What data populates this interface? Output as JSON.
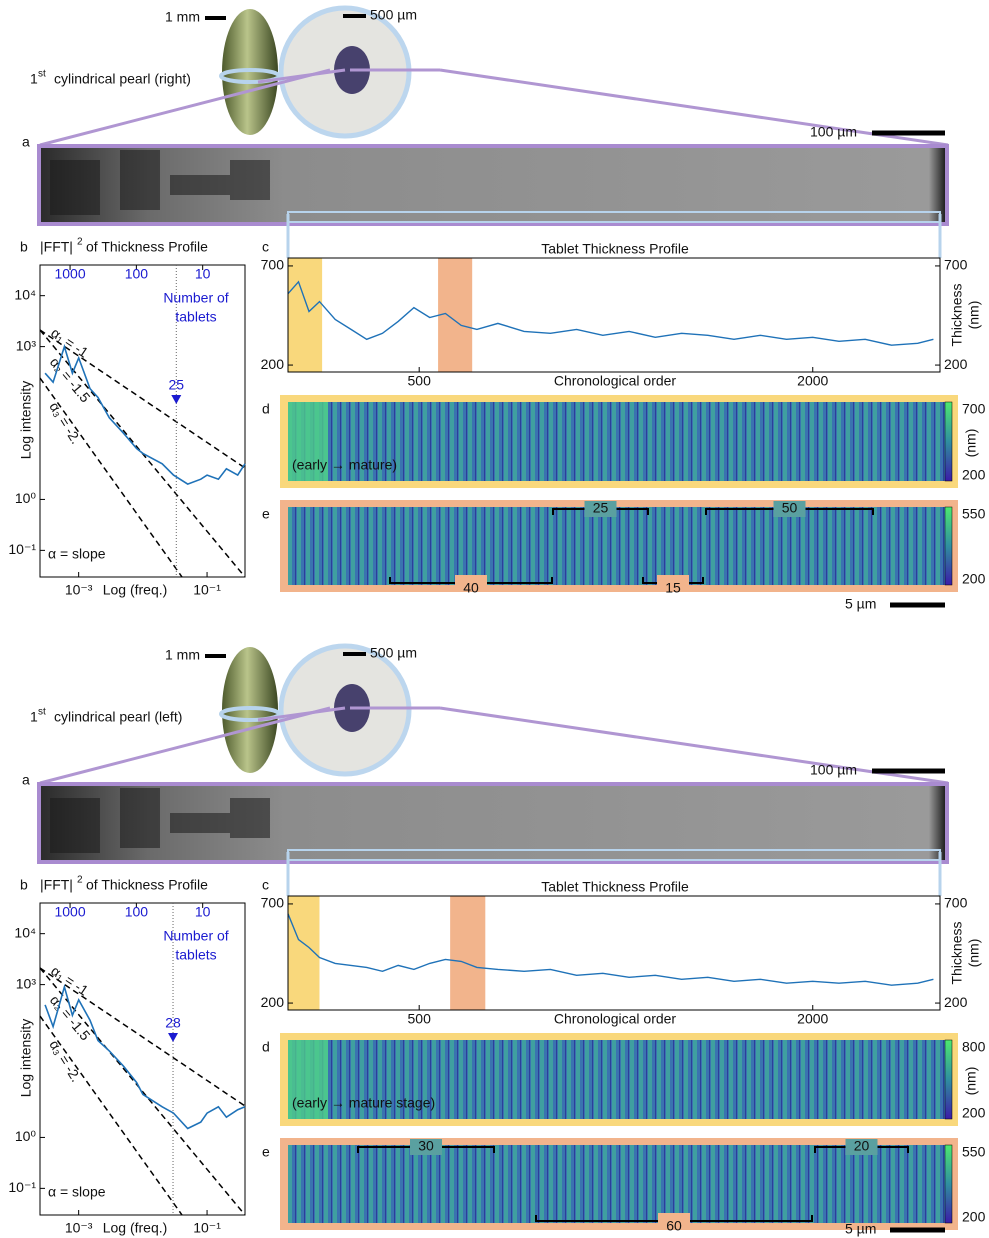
{
  "figures": [
    {
      "pearl": {
        "scale_mm": "1 mm",
        "scale_um": "500 µm",
        "label_number": "1",
        "label_suffix": "st",
        "label_text": "cylindrical pearl (right)"
      },
      "a": {
        "letter": "a",
        "scale": "100 µm"
      },
      "b": {
        "letter": "b",
        "title": "|FFT|",
        "title_sup": "2",
        "title_rest": "of Thickness Profile",
        "xlabel": "Log (freq.)",
        "ylabel": "Log intensity",
        "annotation": [
          "Number of",
          "tablets"
        ],
        "xlim": [
          0.00025,
          0.39
        ],
        "x2lim": [
          2840,
          2.3
        ],
        "ylim": [
          0.03,
          40000
        ],
        "log": true,
        "xticks": [
          {
            "value": 0.001,
            "label": "10⁻³"
          },
          {
            "value": 0.1,
            "label": "10⁻¹"
          }
        ],
        "x2ticks": [
          1000,
          100,
          10
        ],
        "yticks": [
          {
            "value": 10000,
            "label": "10⁴"
          },
          {
            "value": 1000,
            "label": "10³"
          },
          {
            "value": 1,
            "label": "10⁰"
          },
          {
            "value": 0.1,
            "label": "10⁻¹"
          }
        ],
        "marker": 25,
        "slopes": [
          "α₁ = -1",
          "α₂ = -1.5",
          "α₃ = -2."
        ],
        "slope_note": "α = slope",
        "fft": {
          "color": "#1f72b8",
          "x": [
            0.0003,
            0.0004,
            0.0006,
            0.0008,
            0.001,
            0.0015,
            0.002,
            0.003,
            0.005,
            0.008,
            0.01,
            0.02,
            0.03,
            0.05,
            0.08,
            0.1,
            0.15,
            0.2,
            0.3,
            0.39
          ],
          "values": [
            300,
            200,
            1000,
            300,
            600,
            150,
            100,
            40,
            20,
            10,
            8,
            5,
            3,
            2,
            2.5,
            3,
            2.5,
            4,
            3,
            5
          ]
        }
      },
      "c": {
        "letter": "c",
        "title": "Tablet Thickness Profile",
        "xlabel": "Chronological order",
        "ylabel": [
          "Thickness",
          "(nm)"
        ],
        "xlim": [
          0,
          2485
        ],
        "ylim": [
          165,
          740
        ],
        "xticks": [
          500,
          2000
        ],
        "yticks": [
          700,
          200
        ],
        "highlights": [
          {
            "color": "#f9d87c",
            "start": 0,
            "end": 130
          },
          {
            "color": "#f2b48c",
            "start": 572,
            "end": 702
          }
        ],
        "profile": {
          "color": "#1f72b8",
          "x": [
            0,
            40,
            80,
            120,
            180,
            240,
            300,
            360,
            420,
            480,
            540,
            600,
            660,
            720,
            800,
            900,
            1000,
            1100,
            1200,
            1300,
            1400,
            1500,
            1600,
            1700,
            1800,
            1900,
            2000,
            2100,
            2200,
            2300,
            2400,
            2460
          ],
          "thickness": [
            560,
            620,
            470,
            520,
            430,
            380,
            330,
            360,
            420,
            490,
            440,
            460,
            400,
            380,
            410,
            370,
            360,
            380,
            350,
            370,
            340,
            360,
            350,
            330,
            350,
            330,
            340,
            320,
            330,
            300,
            310,
            330
          ]
        }
      },
      "d": {
        "letter": "d",
        "cticks": [
          700,
          200
        ],
        "unit": "(nm)",
        "note": "(early → mature)"
      },
      "e": {
        "letter": "e",
        "cticks": [
          550,
          200
        ],
        "brackets": [
          25,
          50,
          40,
          15
        ],
        "scale": "5 µm"
      }
    },
    {
      "pearl": {
        "scale_mm": "1 mm",
        "scale_um": "500 µm",
        "label_number": "1",
        "label_suffix": "st",
        "label_text": "cylindrical pearl (left)"
      },
      "a": {
        "letter": "a",
        "scale": "100 µm"
      },
      "b": {
        "letter": "b",
        "title": "|FFT|",
        "title_sup": "2",
        "title_rest": "of Thickness Profile",
        "xlabel": "Log (freq.)",
        "ylabel": "Log intensity",
        "annotation": [
          "Number of",
          "tablets"
        ],
        "xlim": [
          0.00025,
          0.39
        ],
        "x2lim": [
          2840,
          2.3
        ],
        "ylim": [
          0.03,
          40000
        ],
        "log": true,
        "xticks": [
          {
            "value": 0.001,
            "label": "10⁻³"
          },
          {
            "value": 0.1,
            "label": "10⁻¹"
          }
        ],
        "x2ticks": [
          1000,
          100,
          10
        ],
        "yticks": [
          {
            "value": 10000,
            "label": "10⁴"
          },
          {
            "value": 1000,
            "label": "10³"
          },
          {
            "value": 1,
            "label": "10⁰"
          },
          {
            "value": 0.1,
            "label": "10⁻¹"
          }
        ],
        "marker": 28,
        "slopes": [
          "α₁ = -1",
          "α₂ = -1.5",
          "α₃ = -2."
        ],
        "slope_note": "α = slope",
        "fft": {
          "color": "#1f72b8",
          "x": [
            0.0003,
            0.0004,
            0.0006,
            0.0008,
            0.001,
            0.0015,
            0.002,
            0.003,
            0.005,
            0.008,
            0.01,
            0.02,
            0.03,
            0.05,
            0.08,
            0.1,
            0.15,
            0.2,
            0.3,
            0.39
          ],
          "values": [
            400,
            150,
            900,
            250,
            500,
            200,
            80,
            50,
            25,
            12,
            7,
            4,
            3,
            1.5,
            2,
            3,
            4,
            2.5,
            3.5,
            4
          ]
        }
      },
      "c": {
        "letter": "c",
        "title": "Tablet Thickness Profile",
        "xlabel": "Chronological order",
        "ylabel": [
          "Thickness",
          "(nm)"
        ],
        "xlim": [
          0,
          2485
        ],
        "ylim": [
          165,
          740
        ],
        "xticks": [
          500,
          2000
        ],
        "yticks": [
          700,
          200
        ],
        "highlights": [
          {
            "color": "#f9d87c",
            "start": 0,
            "end": 120
          },
          {
            "color": "#f2b48c",
            "start": 618,
            "end": 752
          }
        ],
        "profile": {
          "color": "#1f72b8",
          "x": [
            0,
            40,
            80,
            120,
            180,
            240,
            300,
            360,
            420,
            480,
            540,
            600,
            660,
            720,
            800,
            900,
            1000,
            1100,
            1200,
            1300,
            1400,
            1500,
            1600,
            1700,
            1800,
            1900,
            2000,
            2100,
            2200,
            2300,
            2400,
            2460
          ],
          "thickness": [
            650,
            520,
            480,
            430,
            400,
            390,
            380,
            360,
            390,
            370,
            400,
            420,
            410,
            380,
            370,
            360,
            370,
            340,
            350,
            330,
            340,
            320,
            330,
            310,
            320,
            300,
            310,
            300,
            310,
            290,
            300,
            320
          ]
        }
      },
      "d": {
        "letter": "d",
        "cticks": [
          800,
          200
        ],
        "unit": "(nm)",
        "note": "(early → mature stage)"
      },
      "e": {
        "letter": "e",
        "cticks": [
          550,
          200
        ],
        "brackets": [
          30,
          20,
          60
        ],
        "scale": "5 µm"
      }
    }
  ]
}
